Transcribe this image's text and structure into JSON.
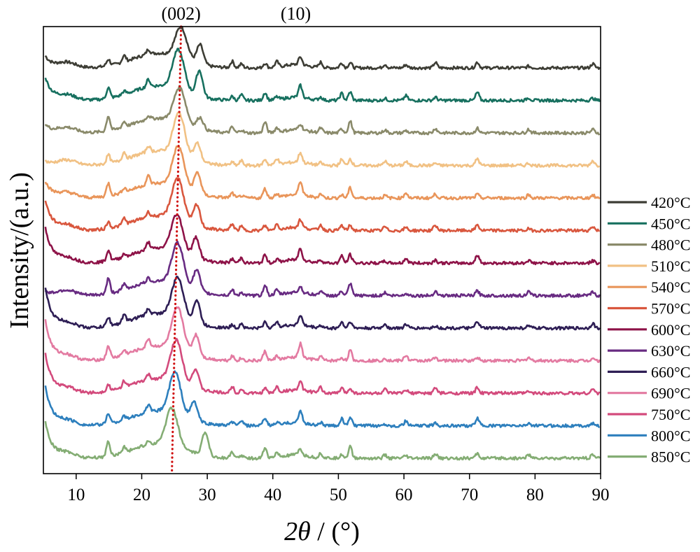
{
  "chart_data": {
    "type": "line",
    "title": "",
    "xlabel_var": "2θ",
    "xlabel_unit": " / (°)",
    "ylabel": "Intensity/(a.u.)",
    "xlim": [
      5,
      90
    ],
    "xticks": [
      "10",
      "20",
      "30",
      "40",
      "50",
      "60",
      "70",
      "80",
      "90"
    ],
    "xtick_values": [
      10,
      20,
      30,
      40,
      50,
      60,
      70,
      80,
      90
    ],
    "legend_position": "right",
    "annotations": [
      {
        "label": "(002)",
        "x": 26
      },
      {
        "label": "(10)",
        "x": 43.5
      }
    ],
    "reference_line": {
      "style": "dotted",
      "color": "#d01010",
      "from": {
        "x": 26.0,
        "trace": "420°C"
      },
      "to": {
        "x": 24.6,
        "trace": "850°C"
      }
    },
    "series": [
      {
        "name": "420°C",
        "color": "#3d3d35",
        "baseline_offset": 12,
        "main_peak": 26.0,
        "main_height": 0.74,
        "shoulder": 28.9,
        "shoulder_height": 0.46,
        "low_angle_rise": 0.28
      },
      {
        "name": "450°C",
        "color": "#17705f",
        "baseline_offset": 11,
        "main_peak": 25.6,
        "main_height": 0.95,
        "shoulder": 28.8,
        "shoulder_height": 0.62,
        "low_angle_rise": 0.55
      },
      {
        "name": "480°C",
        "color": "#8a8a6a",
        "baseline_offset": 10,
        "main_peak": 25.8,
        "main_height": 0.84,
        "shoulder": 28.9,
        "shoulder_height": 0.28,
        "low_angle_rise": 0.2
      },
      {
        "name": "510°C",
        "color": "#f1c184",
        "baseline_offset": 9,
        "main_peak": 25.7,
        "main_height": 1.0,
        "shoulder": 28.5,
        "shoulder_height": 0.42,
        "low_angle_rise": 0.1
      },
      {
        "name": "540°C",
        "color": "#e9955a",
        "baseline_offset": 8,
        "main_peak": 25.6,
        "main_height": 0.98,
        "shoulder": 28.5,
        "shoulder_height": 0.5,
        "low_angle_rise": 0.4
      },
      {
        "name": "570°C",
        "color": "#d9573e",
        "baseline_offset": 7,
        "main_peak": 25.5,
        "main_height": 1.0,
        "shoulder": 28.4,
        "shoulder_height": 0.5,
        "low_angle_rise": 0.72
      },
      {
        "name": "600°C",
        "color": "#8e1348",
        "baseline_offset": 6,
        "main_peak": 25.4,
        "main_height": 0.9,
        "shoulder": 28.3,
        "shoulder_height": 0.5,
        "low_angle_rise": 0.85
      },
      {
        "name": "630°C",
        "color": "#682b82",
        "baseline_offset": 5,
        "main_peak": 25.5,
        "main_height": 1.0,
        "shoulder": 28.4,
        "shoulder_height": 0.5,
        "low_angle_rise": 0.1
      },
      {
        "name": "660°C",
        "color": "#2e1e55",
        "baseline_offset": 4,
        "main_peak": 25.5,
        "main_height": 0.95,
        "shoulder": 28.4,
        "shoulder_height": 0.55,
        "low_angle_rise": 0.95
      },
      {
        "name": "690°C",
        "color": "#e37aa1",
        "baseline_offset": 3,
        "main_peak": 25.5,
        "main_height": 1.0,
        "shoulder": 28.3,
        "shoulder_height": 0.5,
        "low_angle_rise": 0.95
      },
      {
        "name": "750°C",
        "color": "#d34a7c",
        "baseline_offset": 2,
        "main_peak": 25.3,
        "main_height": 1.0,
        "shoulder": 28.2,
        "shoulder_height": 0.45,
        "low_angle_rise": 0.95
      },
      {
        "name": "800°C",
        "color": "#2d7fbd",
        "baseline_offset": 1,
        "main_peak": 25.1,
        "main_height": 1.0,
        "shoulder": 28.0,
        "shoulder_height": 0.45,
        "low_angle_rise": 0.95
      },
      {
        "name": "850°C",
        "color": "#84ad74",
        "baseline_offset": 0,
        "main_peak": 24.6,
        "main_height": 0.9,
        "shoulder": 29.7,
        "shoulder_height": 0.55,
        "low_angle_rise": 0.85
      }
    ]
  }
}
